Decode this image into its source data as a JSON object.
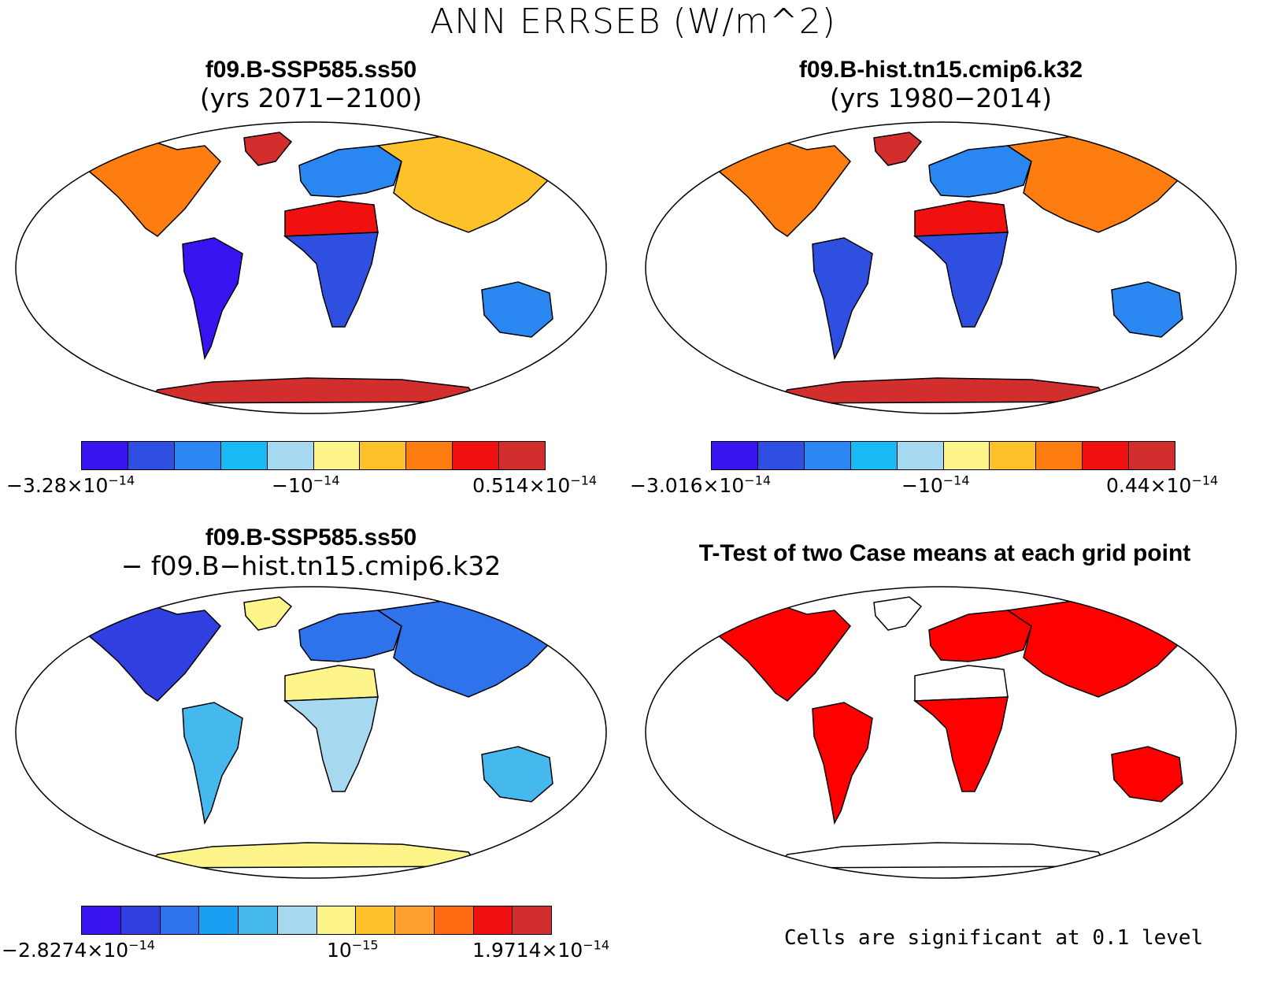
{
  "title": "ANN ERRSEB (W/m^2)",
  "panels": [
    {
      "id": "p1",
      "title": "f09.B-SSP585.ss50",
      "subtitle": "(yrs 2071−2100)"
    },
    {
      "id": "p2",
      "title": "f09.B-hist.tn15.cmip6.k32",
      "subtitle": "(yrs 1980−2014)"
    },
    {
      "id": "p3",
      "title": "f09.B-SSP585.ss50",
      "subtitle": "− f09.B−hist.tn15.cmip6.k32"
    },
    {
      "id": "p4",
      "title": "T-Test of two Case means at each grid point",
      "subtitle": ""
    }
  ],
  "colorbars": {
    "cb1": {
      "colors": [
        "#3a14f0",
        "#2f4fe0",
        "#2a86f0",
        "#17baf5",
        "#a6d8f0",
        "#fdf58a",
        "#fdc12a",
        "#fd7d10",
        "#f01010",
        "#d22e2e"
      ],
      "labels": [
        {
          "base": "−3.28×10",
          "exp": "−14"
        },
        {
          "base": "−10",
          "exp": "−14"
        },
        {
          "base": "0.514×10",
          "exp": "−14"
        }
      ]
    },
    "cb2": {
      "colors": [
        "#3a14f0",
        "#2f4fe0",
        "#2a86f0",
        "#17baf5",
        "#a6d8f0",
        "#fdf58a",
        "#fdc12a",
        "#fd7d10",
        "#f01010",
        "#d22e2e"
      ],
      "labels": [
        {
          "base": "−3.016×10",
          "exp": "−14"
        },
        {
          "base": "−10",
          "exp": "−14"
        },
        {
          "base": "0.44×10",
          "exp": "−14"
        }
      ]
    },
    "cb3": {
      "colors": [
        "#3a14f0",
        "#2f3fe0",
        "#2e73ec",
        "#1a9ff2",
        "#45b8ee",
        "#a6d8f0",
        "#fdf58a",
        "#fdc12a",
        "#fda030",
        "#fd6a10",
        "#f01010",
        "#d22e2e"
      ],
      "labels": [
        {
          "base": "−2.8274×10",
          "exp": "−14"
        },
        {
          "base": "10",
          "exp": "−15"
        },
        {
          "base": "1.9714×10",
          "exp": "−14"
        }
      ]
    }
  },
  "ttest_note": "Cells are significant at 0.1 level",
  "fills": {
    "p1": {
      "na": "#fd7d10",
      "sa": "#3a14f0",
      "eu": "#2a86f0",
      "as": "#fdc12a",
      "af_n": "#f01010",
      "af_s": "#2f4fe0",
      "au": "#2a86f0",
      "gl": "#d22e2e",
      "an": "#d22e2e"
    },
    "p2": {
      "na": "#fd7d10",
      "sa": "#2f4fe0",
      "eu": "#2a86f0",
      "as": "#fd7d10",
      "af_n": "#f01010",
      "af_s": "#2f4fe0",
      "au": "#2a86f0",
      "gl": "#d22e2e",
      "an": "#d22e2e"
    },
    "p3": {
      "na": "#2f3fe0",
      "sa": "#45b8ee",
      "eu": "#2e73ec",
      "as": "#2e73ec",
      "af_n": "#fdf58a",
      "af_s": "#a6d8f0",
      "au": "#45b8ee",
      "gl": "#fdf58a",
      "an": "#fdf58a"
    },
    "p4": {
      "na": "#ff0000",
      "sa": "#ff0000",
      "eu": "#ff0000",
      "as": "#ff0000",
      "af_n": "#ffffff",
      "af_s": "#ff0000",
      "au": "#ff0000",
      "gl": "#ffffff",
      "an": "#ffffff"
    }
  }
}
